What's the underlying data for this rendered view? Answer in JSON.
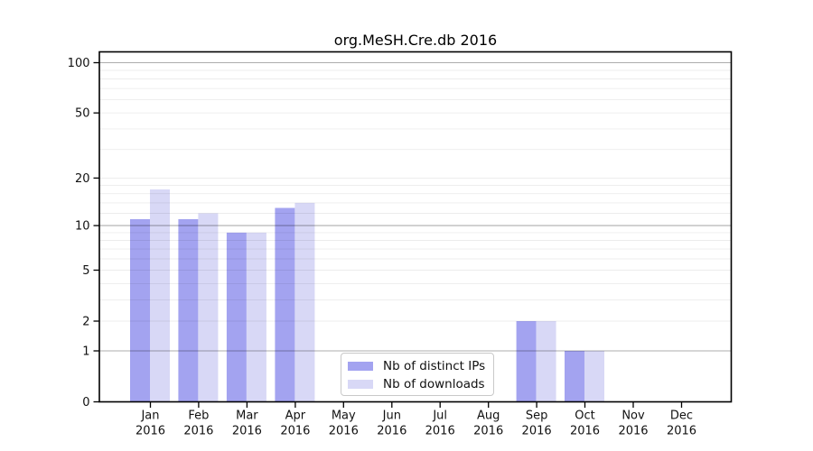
{
  "chart_data": {
    "type": "bar",
    "title": "org.MeSH.Cre.db 2016",
    "categories": [
      "Jan",
      "Feb",
      "Mar",
      "Apr",
      "May",
      "Jun",
      "Jul",
      "Aug",
      "Sep",
      "Oct",
      "Nov",
      "Dec"
    ],
    "year": "2016",
    "series": [
      {
        "id": "ip",
        "name": "Nb of distinct IPs",
        "color": "#a3a3f0",
        "values": [
          11,
          11,
          9,
          13,
          0,
          0,
          0,
          0,
          2,
          1,
          0,
          0
        ]
      },
      {
        "id": "dl",
        "name": "Nb of downloads",
        "color": "#d8d8f6",
        "values": [
          17,
          12,
          9,
          14,
          0,
          0,
          0,
          0,
          2,
          1,
          0,
          0
        ]
      }
    ],
    "yscale": "log10(1+x)",
    "yticks": [
      0,
      1,
      2,
      5,
      10,
      20,
      50,
      100
    ],
    "ylim": [
      0,
      116
    ],
    "grid": {
      "major": [
        1,
        10,
        100
      ],
      "minor": [
        2,
        3,
        4,
        5,
        6,
        7,
        8,
        9,
        12,
        14,
        16,
        18,
        20,
        30,
        40,
        50,
        60,
        70,
        80,
        90
      ]
    },
    "legend_position": "lower center-left",
    "xlabel": "",
    "ylabel": ""
  },
  "legend": {
    "items": [
      {
        "id": "ip",
        "label": "Nb of distinct IPs",
        "color": "#a3a3f0"
      },
      {
        "id": "dl",
        "label": "Nb of downloads",
        "color": "#d8d8f6"
      }
    ]
  },
  "colors": {
    "ip_bar": "#a3a3f0",
    "dl_bar": "#d8d8f6",
    "spine": "#000000",
    "grid_major": "rgba(0,0,0,0.32)",
    "grid_minor": "rgba(0,0,0,0.075)",
    "text": "#111111"
  }
}
